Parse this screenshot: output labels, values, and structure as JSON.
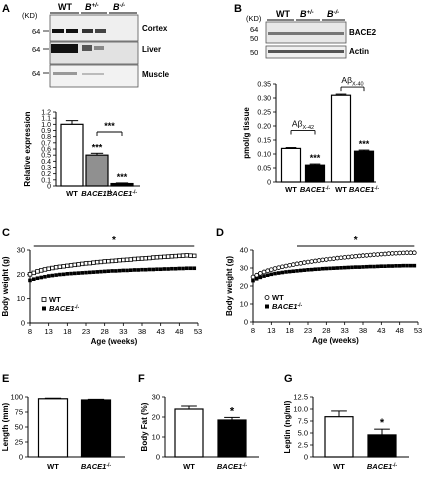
{
  "panels": {
    "A": {
      "letter": "A",
      "kd_label": "(KD)",
      "lanes": [
        "WT",
        "B",
        "+/-",
        "B",
        "-/-"
      ],
      "rows": [
        {
          "mw": "64",
          "tissue": "Cortex"
        },
        {
          "mw": "64",
          "tissue": "Liver"
        },
        {
          "mw": "64",
          "tissue": "Muscle"
        }
      ]
    },
    "B": {
      "letter": "B",
      "kd_label": "(KD)",
      "lanes": [
        "WT",
        "B",
        "+/-",
        "B",
        "-/-"
      ],
      "mw": [
        "64",
        "50",
        "50"
      ],
      "labels": [
        "BACE2",
        "Actin"
      ]
    },
    "C": {
      "letter": "C"
    },
    "D": {
      "letter": "D"
    },
    "E": {
      "letter": "E"
    },
    "F": {
      "letter": "F"
    },
    "G": {
      "letter": "G"
    }
  },
  "chart_data": [
    {
      "id": "A-bar",
      "type": "bar",
      "ylabel": "Relative expression",
      "ylim": [
        0,
        1.2
      ],
      "yticks": [
        "0",
        "0.1",
        "0.2",
        "0.3",
        "0.4",
        "0.5",
        "0.6",
        "0.7",
        "0.8",
        "0.9",
        "1.0",
        "1.1",
        "1.2"
      ],
      "categories": [
        "WT",
        "BACE1",
        "BACE1"
      ],
      "category_superscripts": [
        "",
        "+/-",
        "-/-"
      ],
      "values": [
        1.0,
        0.5,
        0.04
      ],
      "errors": [
        0.06,
        0.03,
        0.01
      ],
      "fills": [
        "#ffffff",
        "#909090",
        "#000000"
      ],
      "bar_stars": [
        "",
        "***",
        "***"
      ],
      "bracket_star": "***"
    },
    {
      "id": "B-bar",
      "type": "bar",
      "ylabel": "pmol/g tissue",
      "ylim": [
        0,
        0.35
      ],
      "yticks": [
        "0",
        "0.05",
        "0.10",
        "0.15",
        "0.20",
        "0.25",
        "0.30",
        "0.35"
      ],
      "categories": [
        "WT",
        "BACE1",
        "WT",
        "BACE1"
      ],
      "category_superscripts": [
        "",
        "-/-",
        "",
        "-/-"
      ],
      "values": [
        0.12,
        0.06,
        0.31,
        0.11
      ],
      "errors": [
        0.003,
        0.004,
        0.004,
        0.004
      ],
      "fills": [
        "#ffffff",
        "#000000",
        "#ffffff",
        "#000000"
      ],
      "bar_stars": [
        "",
        "***",
        "",
        "***"
      ],
      "groups": [
        {
          "label": "Aβ",
          "subscript": "X-42"
        },
        {
          "label": "Aβ",
          "subscript": "X-40"
        }
      ]
    },
    {
      "id": "C-line",
      "type": "scatter",
      "ylabel": "Body weight (g)",
      "xlabel": "Age (weeks)",
      "xlim": [
        8,
        53
      ],
      "ylim": [
        0,
        30
      ],
      "xticks": [
        "8",
        "13",
        "18",
        "23",
        "28",
        "33",
        "38",
        "43",
        "48",
        "53"
      ],
      "yticks": [
        "0",
        "10",
        "20",
        "30"
      ],
      "star": "*",
      "legend": [
        "WT",
        "BACE1"
      ],
      "legend_superscripts": [
        "",
        "-/-"
      ],
      "x": [
        8,
        9,
        10,
        11,
        12,
        13,
        14,
        15,
        16,
        17,
        18,
        19,
        20,
        21,
        22,
        23,
        24,
        25,
        26,
        27,
        28,
        29,
        30,
        31,
        32,
        33,
        34,
        35,
        36,
        37,
        38,
        39,
        40,
        41,
        42,
        43,
        44,
        45,
        46,
        47,
        48,
        49,
        50,
        51,
        52
      ],
      "series": [
        {
          "name": "WT",
          "marker": "open-square",
          "values": [
            20.0,
            20.6,
            21.2,
            21.6,
            22.0,
            22.3,
            22.6,
            22.9,
            23.1,
            23.3,
            23.5,
            23.7,
            23.9,
            24.1,
            24.3,
            24.5,
            24.6,
            24.8,
            25.0,
            25.1,
            25.3,
            25.4,
            25.5,
            25.6,
            25.8,
            25.9,
            26.0,
            26.1,
            26.3,
            26.4,
            26.5,
            26.6,
            26.7,
            26.9,
            27.0,
            27.1,
            27.2,
            27.3,
            27.4,
            27.5,
            27.6,
            27.7,
            27.8,
            27.7,
            27.6
          ]
        },
        {
          "name": "BACE1-/-",
          "marker": "filled-square",
          "values": [
            17.5,
            18.0,
            18.4,
            18.7,
            19.0,
            19.3,
            19.5,
            19.7,
            19.9,
            20.0,
            20.2,
            20.3,
            20.4,
            20.5,
            20.6,
            20.7,
            20.8,
            20.9,
            21.0,
            21.1,
            21.2,
            21.3,
            21.4,
            21.4,
            21.5,
            21.6,
            21.6,
            21.7,
            21.8,
            21.8,
            21.9,
            21.9,
            22.0,
            22.0,
            22.1,
            22.1,
            22.2,
            22.2,
            22.3,
            22.3,
            22.4,
            22.4,
            22.5,
            22.5,
            22.5
          ]
        }
      ]
    },
    {
      "id": "D-line",
      "type": "scatter",
      "ylabel": "Body weight (g)",
      "xlabel": "Age (weeks)",
      "xlim": [
        8,
        53
      ],
      "ylim": [
        0,
        40
      ],
      "xticks": [
        "8",
        "13",
        "18",
        "23",
        "28",
        "33",
        "38",
        "43",
        "48",
        "53"
      ],
      "yticks": [
        "0",
        "10",
        "20",
        "30",
        "40"
      ],
      "star": "*",
      "legend": [
        "WT",
        "BACE1"
      ],
      "legend_superscripts": [
        "",
        "-/-"
      ],
      "x": [
        8,
        9,
        10,
        11,
        12,
        13,
        14,
        15,
        16,
        17,
        18,
        19,
        20,
        21,
        22,
        23,
        24,
        25,
        26,
        27,
        28,
        29,
        30,
        31,
        32,
        33,
        34,
        35,
        36,
        37,
        38,
        39,
        40,
        41,
        42,
        43,
        44,
        45,
        46,
        47,
        48,
        49,
        50,
        51,
        52
      ],
      "series": [
        {
          "name": "WT",
          "marker": "open-circle",
          "values": [
            25.0,
            26.0,
            27.0,
            27.8,
            28.5,
            29.1,
            29.7,
            30.2,
            30.7,
            31.1,
            31.5,
            31.9,
            32.3,
            32.6,
            33.0,
            33.3,
            33.6,
            33.9,
            34.2,
            34.5,
            34.7,
            35.0,
            35.2,
            35.5,
            35.7,
            35.9,
            36.1,
            36.3,
            36.5,
            36.7,
            36.9,
            37.0,
            37.2,
            37.4,
            37.5,
            37.7,
            37.8,
            38.0,
            38.1,
            38.2,
            38.3,
            38.4,
            38.5,
            38.5,
            38.5
          ]
        },
        {
          "name": "BACE1-/-",
          "marker": "filled-square",
          "values": [
            23.0,
            24.0,
            24.8,
            25.5,
            26.0,
            26.5,
            26.9,
            27.2,
            27.5,
            27.8,
            28.0,
            28.2,
            28.4,
            28.6,
            28.8,
            29.0,
            29.1,
            29.3,
            29.4,
            29.6,
            29.7,
            29.8,
            29.9,
            30.0,
            30.1,
            30.2,
            30.3,
            30.4,
            30.5,
            30.5,
            30.6,
            30.7,
            30.8,
            30.8,
            30.9,
            31.0,
            31.0,
            31.1,
            31.1,
            31.2,
            31.2,
            31.3,
            31.3,
            31.3,
            31.3
          ]
        }
      ]
    },
    {
      "id": "E-bar",
      "type": "bar",
      "ylabel": "Length (mm)",
      "ylim": [
        0,
        100
      ],
      "yticks": [
        "0",
        "25",
        "50",
        "75",
        "100"
      ],
      "categories": [
        "WT",
        "BACE1"
      ],
      "category_superscripts": [
        "",
        "-/-"
      ],
      "values": [
        97,
        95
      ],
      "errors": [
        1,
        1
      ],
      "fills": [
        "#ffffff",
        "#000000"
      ],
      "bar_stars": [
        "",
        ""
      ]
    },
    {
      "id": "F-bar",
      "type": "bar",
      "ylabel": "Body Fat (%)",
      "ylim": [
        0,
        30
      ],
      "yticks": [
        "0",
        "10",
        "20",
        "30"
      ],
      "categories": [
        "WT",
        "BACE1"
      ],
      "category_superscripts": [
        "",
        "-/-"
      ],
      "values": [
        24,
        18.5
      ],
      "errors": [
        1.5,
        1.3
      ],
      "fills": [
        "#ffffff",
        "#000000"
      ],
      "bar_stars": [
        "",
        "*"
      ]
    },
    {
      "id": "G-bar",
      "type": "bar",
      "ylabel": "Leptin (ng/ml)",
      "ylim": [
        0,
        12.5
      ],
      "yticks": [
        "0",
        "2.5",
        "5.0",
        "7.5",
        "10.0",
        "12.5"
      ],
      "categories": [
        "WT",
        "BACE1"
      ],
      "category_superscripts": [
        "",
        "-/-"
      ],
      "values": [
        8.4,
        4.6
      ],
      "errors": [
        1.2,
        1.2
      ],
      "fills": [
        "#ffffff",
        "#000000"
      ],
      "bar_stars": [
        "",
        "*"
      ]
    }
  ]
}
